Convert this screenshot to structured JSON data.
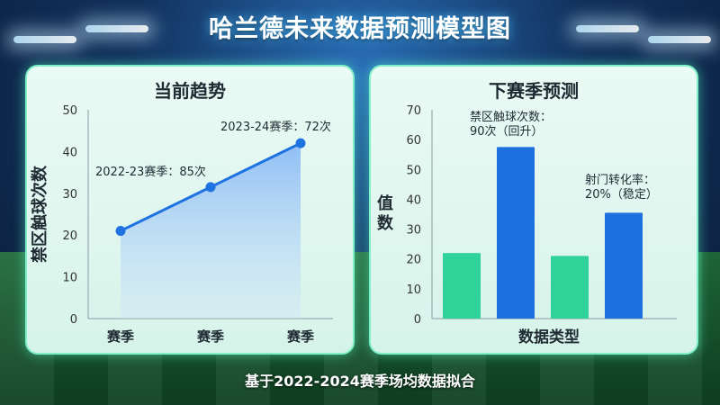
{
  "title": "哈兰德未来数据预测模型图",
  "footer": "基于2022-2024赛季场均数据拟合",
  "colors": {
    "accent": "#1f73e0",
    "green": "#2fd39a",
    "blue": "#1e6fe0",
    "panel_border": "#7ff0c8"
  },
  "chart_data": [
    {
      "type": "line",
      "title": "当前趋势",
      "ylabel": "禁区触球次数",
      "xlabel": "",
      "categories": [
        "赛季",
        "赛季",
        "赛季"
      ],
      "values": [
        21,
        31.5,
        42
      ],
      "ylim": [
        0,
        50
      ],
      "yticks": [
        "0",
        "10",
        "20",
        "30",
        "40",
        "50"
      ],
      "grid": false,
      "annotations": [
        "2022-23赛季：85次",
        "2023-24赛季：72次"
      ]
    },
    {
      "type": "bar",
      "title": "下赛季预测",
      "ylabel": "值数",
      "ylabel_chars": [
        "值",
        "数"
      ],
      "xlabel": "数据类型",
      "values": [
        22,
        57.5,
        21,
        35.5
      ],
      "bar_colors": [
        "#2fd39a",
        "#1e6fe0",
        "#2fd39a",
        "#1e6fe0"
      ],
      "ylim": [
        0,
        70
      ],
      "yticks": [
        "0",
        "10",
        "20",
        "30",
        "40",
        "50",
        "60",
        "70"
      ],
      "grid": false,
      "annotations": [
        [
          "禁区触球次数：",
          "90次（回升）"
        ],
        [
          "射门转化率：",
          "20%（稳定）"
        ]
      ]
    }
  ]
}
